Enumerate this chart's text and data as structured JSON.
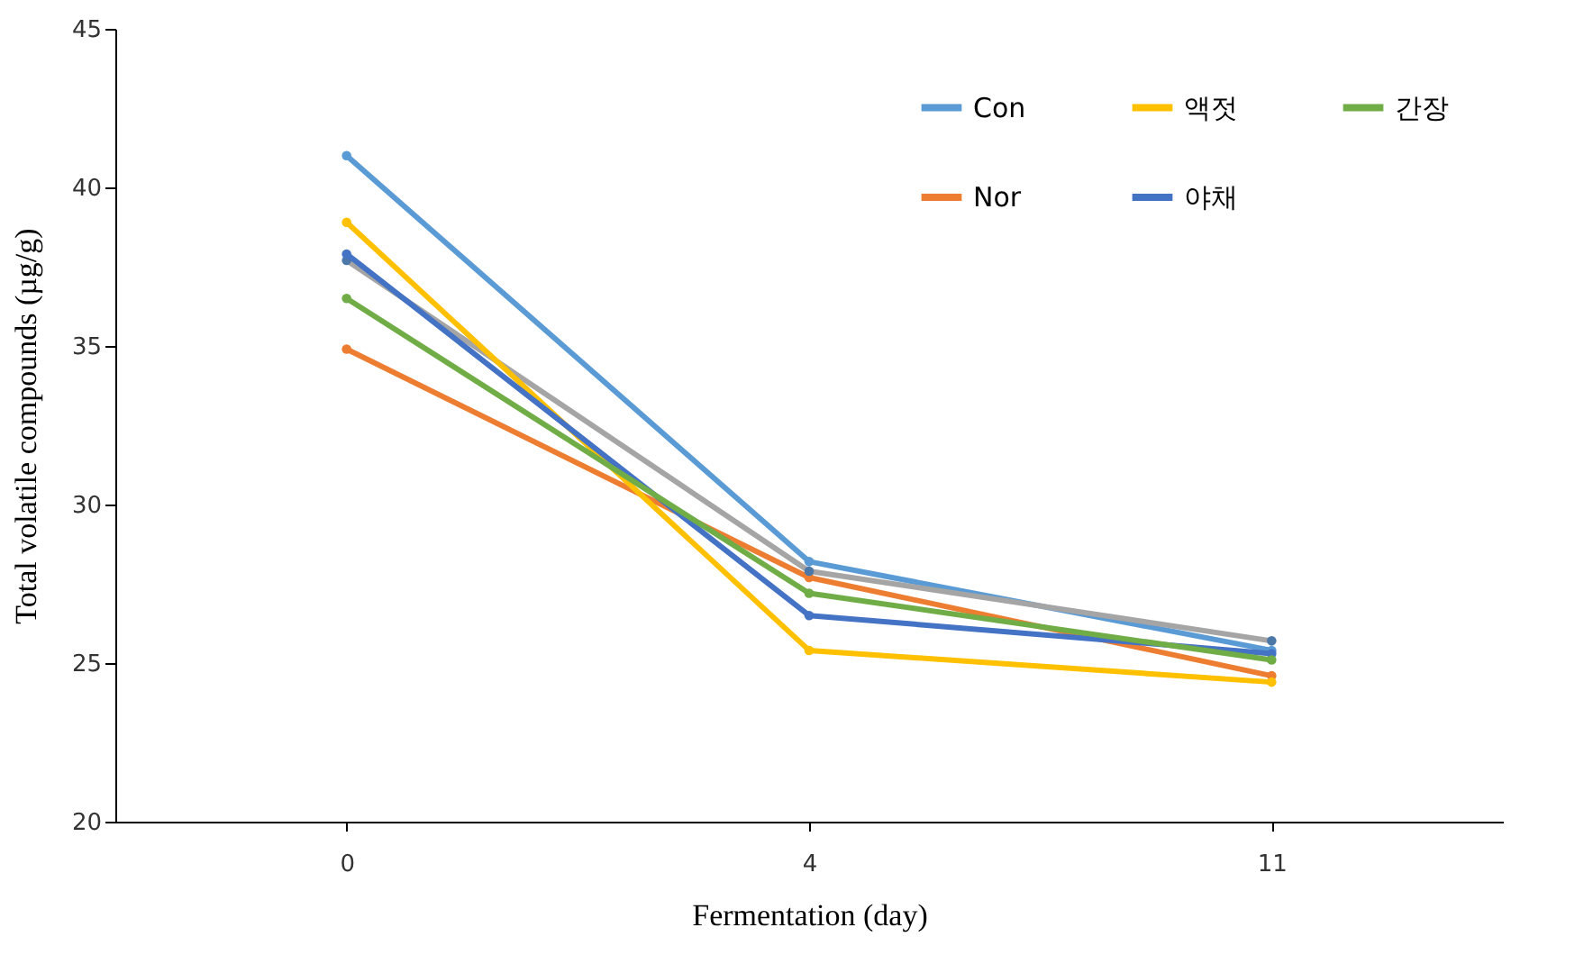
{
  "chart_data": {
    "type": "line",
    "xlabel": "Fermentation  (day)",
    "ylabel": "Total volatile compounds (µg/g)",
    "categories": [
      "0",
      "4",
      "11"
    ],
    "ylim": [
      20,
      45
    ],
    "yticks": [
      20,
      25,
      30,
      35,
      40,
      45
    ],
    "grid": false,
    "legend": "top right",
    "marker": "circle",
    "line_style": "solid",
    "series": [
      {
        "name": "Con",
        "color": "#5b9bd5",
        "values": [
          41.0,
          28.2,
          25.4
        ]
      },
      {
        "name": "Nor",
        "color": "#ed7d31",
        "values": [
          34.9,
          27.7,
          24.6
        ]
      },
      {
        "color": "#a5a5a5",
        "values": [
          37.7,
          27.9,
          25.7
        ]
      },
      {
        "name": "액젓",
        "color": "#ffc000",
        "values": [
          38.9,
          25.4,
          24.4
        ]
      },
      {
        "name": "야채",
        "color": "#4472c4",
        "values": [
          37.9,
          26.5,
          25.3
        ]
      },
      {
        "name": "간장",
        "color": "#70ad47",
        "values": [
          36.5,
          27.2,
          25.1
        ]
      }
    ]
  }
}
